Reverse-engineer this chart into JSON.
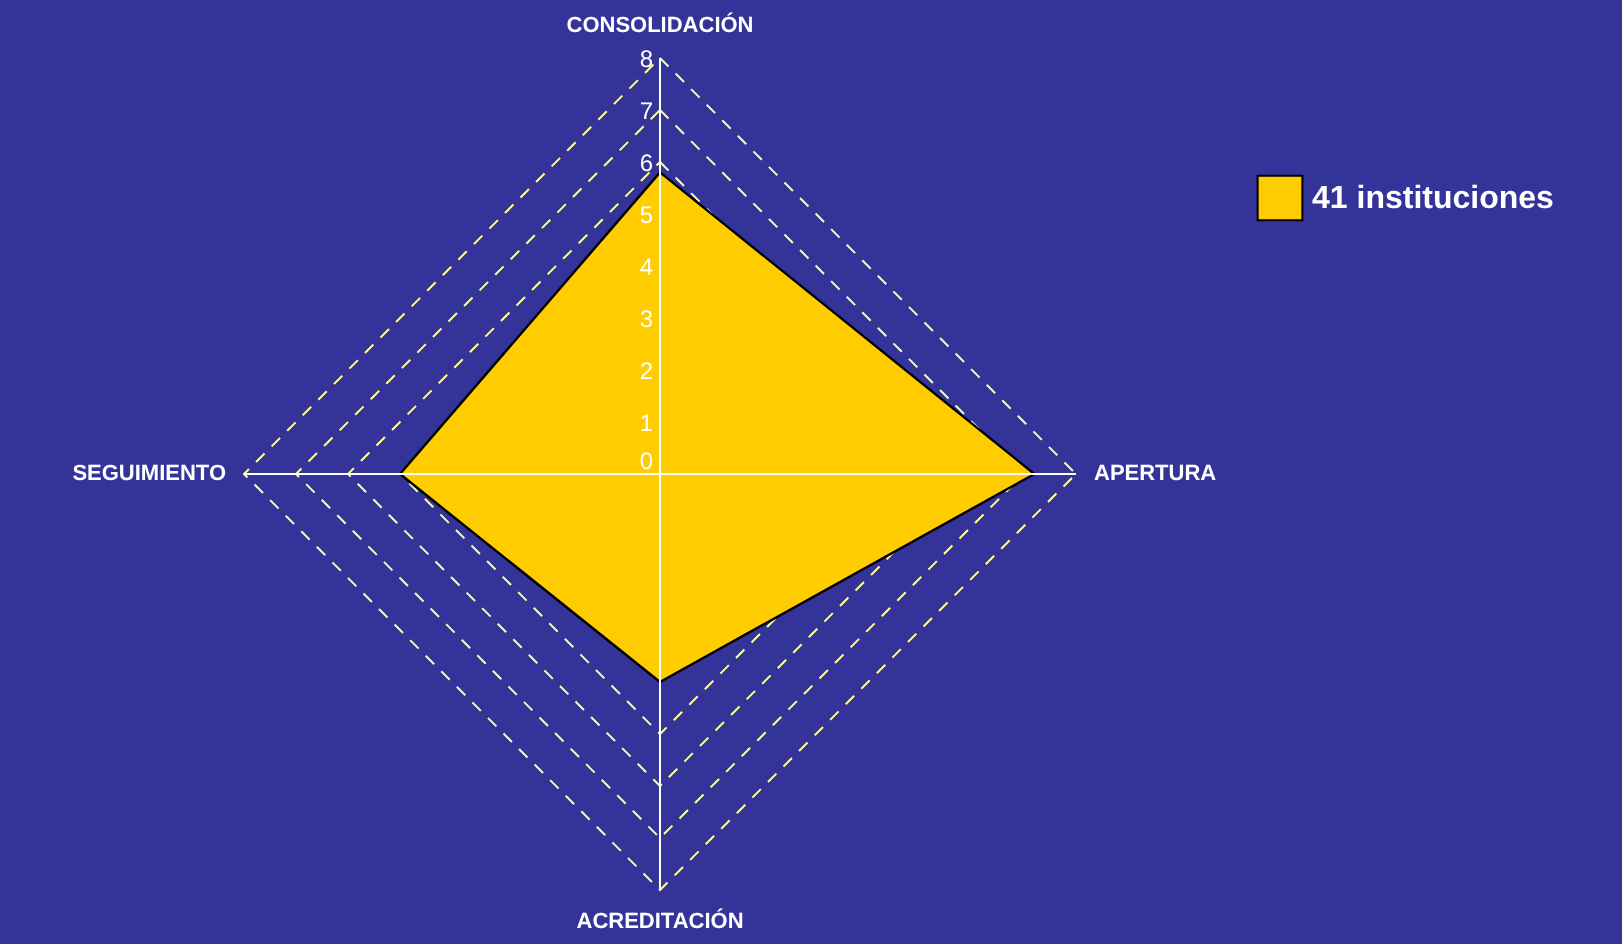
{
  "chart_data": {
    "type": "radar",
    "categories": [
      "CONSOLIDACIÓN",
      "APERTURA",
      "ACREDITACIÓN",
      "SEGUIMIENTO"
    ],
    "series": [
      {
        "name": "41 instituciones",
        "color": "#ffcc00",
        "values": [
          5.8,
          7.2,
          4,
          5
        ]
      }
    ],
    "ylim": [
      0,
      8
    ],
    "yticks": [
      0,
      1,
      2,
      3,
      4,
      5,
      6,
      7,
      8
    ],
    "grid": true,
    "legend": "top right",
    "marker": "none",
    "line_style": "solid"
  }
}
